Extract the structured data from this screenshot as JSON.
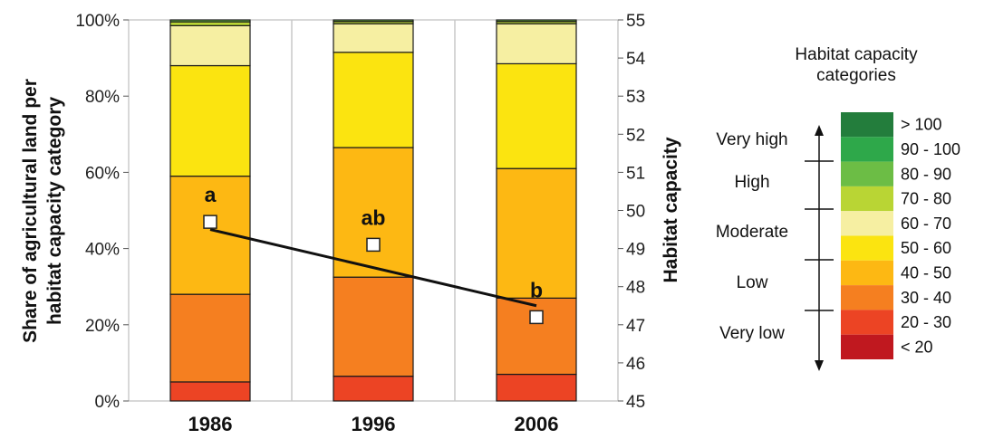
{
  "chart_data": {
    "type": "bar",
    "stacked": true,
    "categories": [
      "1986",
      "1996",
      "2006"
    ],
    "ylabel": "Share of agricultural land per habitat capacity category",
    "ylabel_lines": [
      "Share of agricultural land per",
      "habitat capacity category"
    ],
    "y_ticks": [
      "0%",
      "20%",
      "40%",
      "60%",
      "80%",
      "100%"
    ],
    "ylim": [
      0,
      100
    ],
    "y2label": "Habitat capacity",
    "y2_ticks": [
      "45",
      "46",
      "47",
      "48",
      "49",
      "50",
      "51",
      "52",
      "53",
      "54",
      "55"
    ],
    "y2lim": [
      45,
      55
    ],
    "grid": false,
    "series": [
      {
        "name": "< 20",
        "color": "#c0181f",
        "values": [
          0,
          0,
          0
        ]
      },
      {
        "name": "20 - 30",
        "color": "#ec4424",
        "values": [
          5,
          6.5,
          7
        ]
      },
      {
        "name": "30 - 40",
        "color": "#f57f20",
        "values": [
          23,
          26,
          20
        ]
      },
      {
        "name": "40 - 50",
        "color": "#fdb813",
        "values": [
          31,
          34,
          34
        ]
      },
      {
        "name": "50 - 60",
        "color": "#fbe410",
        "values": [
          29,
          25,
          27.5
        ]
      },
      {
        "name": "60 - 70",
        "color": "#f6efa2",
        "values": [
          10.5,
          7.5,
          10.5
        ]
      },
      {
        "name": "70 - 80",
        "color": "#b9d534",
        "values": [
          1,
          0.6,
          0.6
        ]
      },
      {
        "name": "80 - 90",
        "color": "#6cbd45",
        "values": [
          0.5,
          0.4,
          0.4
        ]
      },
      {
        "name": "90 - 100",
        "color": "#2ea84a",
        "values": [
          0,
          0,
          0
        ]
      },
      {
        "name": "> 100",
        "color": "#237d3c",
        "values": [
          0,
          0,
          0
        ]
      }
    ],
    "habitat_capacity_mean": {
      "axis": "secondary",
      "values": [
        49.7,
        49.1,
        47.2
      ],
      "labels": [
        "a",
        "ab",
        "b"
      ]
    },
    "trend_line": {
      "axis": "secondary",
      "start": 49.5,
      "end": 47.5
    },
    "legend": {
      "title_lines": [
        "Habitat capacity",
        "categories"
      ],
      "placement": "right"
    },
    "capacity_classes": [
      "Very high",
      "High",
      "Moderate",
      "Low",
      "Very low"
    ]
  }
}
